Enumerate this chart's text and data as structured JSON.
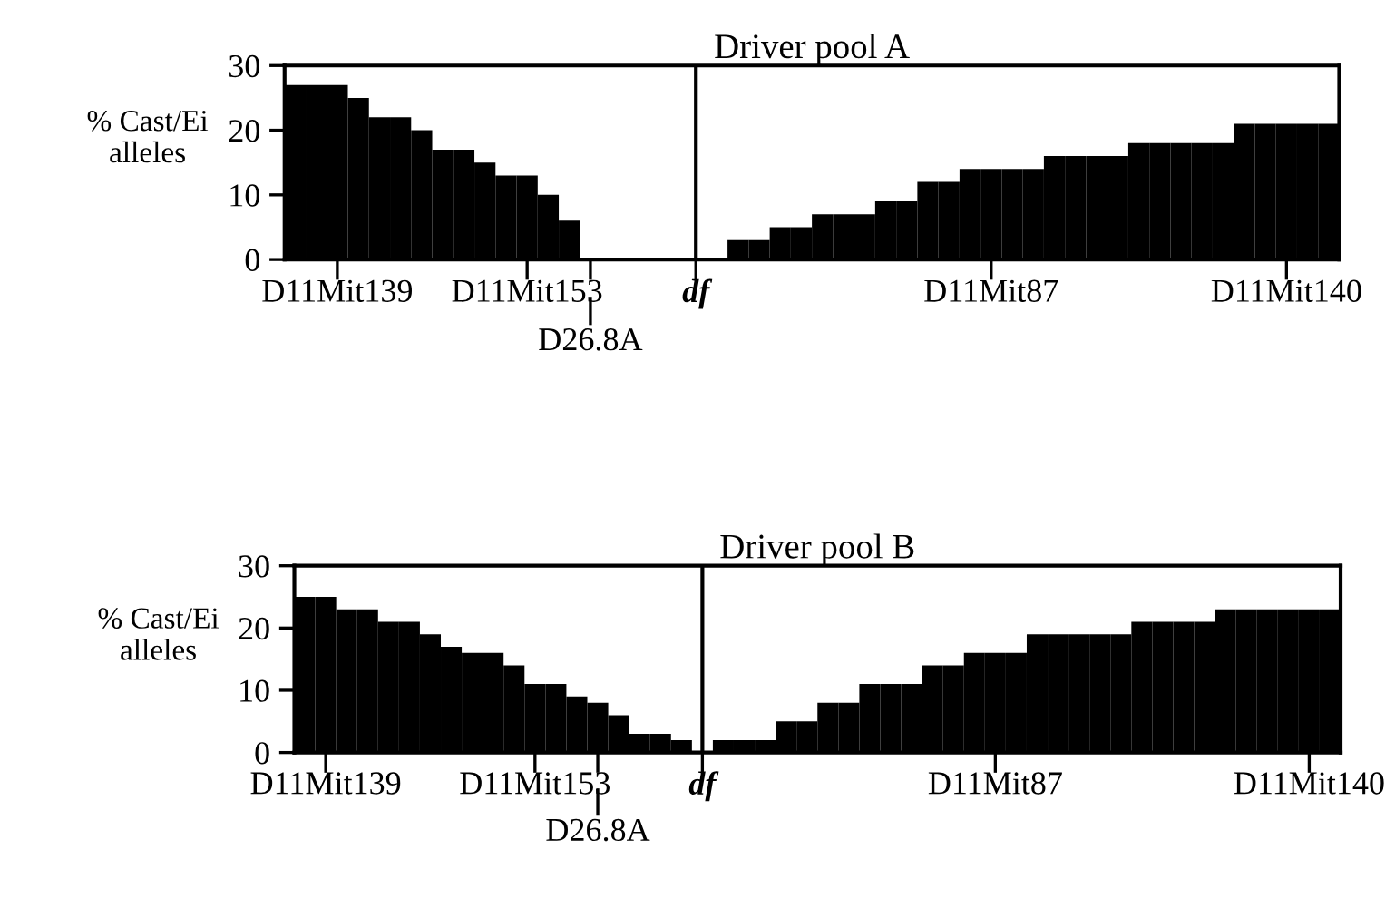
{
  "chart_data": [
    {
      "type": "bar",
      "title": "Driver pool A",
      "ylabel": "% Cast/Ei\nalleles",
      "color": "#000000",
      "categories": [
        null,
        null,
        "D11Mit139",
        null,
        null,
        null,
        null,
        null,
        null,
        null,
        null,
        "D11Mit153",
        null,
        null,
        "D26.8A",
        null,
        null,
        null,
        null,
        "df",
        null,
        null,
        null,
        null,
        null,
        null,
        null,
        null,
        null,
        null,
        null,
        null,
        null,
        "D11Mit87",
        null,
        null,
        null,
        null,
        null,
        null,
        null,
        null,
        null,
        null,
        null,
        null,
        null,
        "D11Mit140",
        null,
        null
      ],
      "values": [
        27,
        27,
        27,
        25,
        22,
        22,
        20,
        17,
        17,
        15,
        13,
        13,
        10,
        6,
        0,
        0,
        0,
        0,
        0,
        0,
        0,
        3,
        3,
        5,
        5,
        7,
        7,
        7,
        9,
        9,
        12,
        12,
        14,
        14,
        14,
        14,
        16,
        16,
        16,
        16,
        18,
        18,
        18,
        18,
        18,
        21,
        21,
        21,
        21,
        21
      ],
      "ylim": [
        0,
        30
      ],
      "yticks": [
        0,
        10,
        20,
        30
      ],
      "ref_lines": [
        {
          "axis": "x",
          "value": "df",
          "color": "#000000"
        }
      ],
      "grid": false,
      "legend": false
    },
    {
      "type": "bar",
      "title": "Driver pool B",
      "ylabel": "% Cast/Ei\nalleles",
      "color": "#000000",
      "categories": [
        null,
        "D11Mit139",
        null,
        null,
        null,
        null,
        null,
        null,
        null,
        null,
        null,
        "D11Mit153",
        null,
        null,
        "D26.8A",
        null,
        null,
        null,
        null,
        "df",
        null,
        null,
        null,
        null,
        null,
        null,
        null,
        null,
        null,
        null,
        null,
        null,
        null,
        "D11Mit87",
        null,
        null,
        null,
        null,
        null,
        null,
        null,
        null,
        null,
        null,
        null,
        null,
        null,
        null,
        "D11Mit140",
        null
      ],
      "values": [
        25,
        25,
        23,
        23,
        21,
        21,
        19,
        17,
        16,
        16,
        14,
        11,
        11,
        9,
        8,
        6,
        3,
        3,
        2,
        0,
        2,
        2,
        2,
        5,
        5,
        8,
        8,
        11,
        11,
        11,
        14,
        14,
        16,
        16,
        16,
        19,
        19,
        19,
        19,
        19,
        21,
        21,
        21,
        21,
        23,
        23,
        23,
        23,
        23,
        23
      ],
      "ylim": [
        0,
        30
      ],
      "yticks": [
        0,
        10,
        20,
        30
      ],
      "ref_lines": [
        {
          "axis": "x",
          "value": "df",
          "color": "#000000"
        }
      ],
      "grid": false,
      "legend": false
    }
  ]
}
